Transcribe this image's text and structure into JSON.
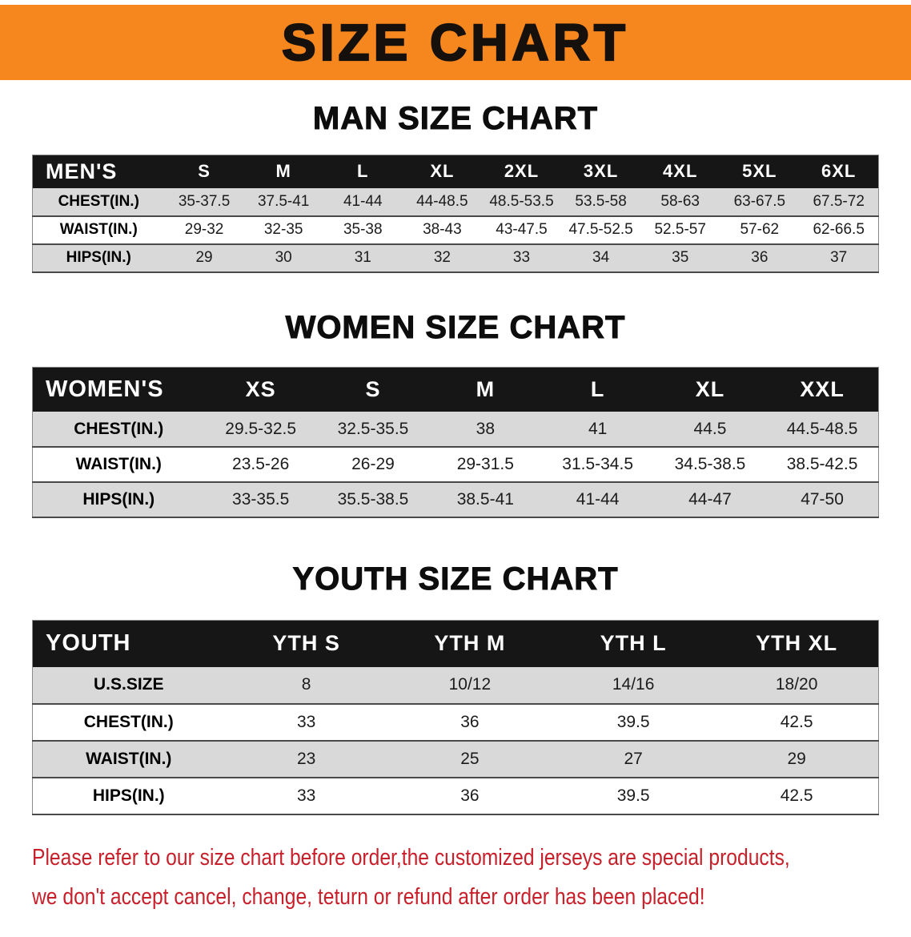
{
  "banner": {
    "title": "SIZE CHART"
  },
  "sections": [
    {
      "id": "men",
      "heading": "MAN SIZE CHART",
      "table": {
        "label": "MEN'S",
        "sizes": [
          "S",
          "M",
          "L",
          "XL",
          "2XL",
          "3XL",
          "4XL",
          "5XL",
          "6XL"
        ],
        "rows": [
          {
            "label": "CHEST(IN.)",
            "values": [
              "35-37.5",
              "37.5-41",
              "41-44",
              "44-48.5",
              "48.5-53.5",
              "53.5-58",
              "58-63",
              "63-67.5",
              "67.5-72"
            ]
          },
          {
            "label": "WAIST(IN.)",
            "values": [
              "29-32",
              "32-35",
              "35-38",
              "38-43",
              "43-47.5",
              "47.5-52.5",
              "52.5-57",
              "57-62",
              "62-66.5"
            ]
          },
          {
            "label": "HIPS(IN.)",
            "values": [
              "29",
              "30",
              "31",
              "32",
              "33",
              "34",
              "35",
              "36",
              "37"
            ]
          }
        ]
      }
    },
    {
      "id": "women",
      "heading": "WOMEN SIZE CHART",
      "table": {
        "label": "WOMEN'S",
        "sizes": [
          "XS",
          "S",
          "M",
          "L",
          "XL",
          "XXL"
        ],
        "rows": [
          {
            "label": "CHEST(IN.)",
            "values": [
              "29.5-32.5",
              "32.5-35.5",
              "38",
              "41",
              "44.5",
              "44.5-48.5"
            ]
          },
          {
            "label": "WAIST(IN.)",
            "values": [
              "23.5-26",
              "26-29",
              "29-31.5",
              "31.5-34.5",
              "34.5-38.5",
              "38.5-42.5"
            ]
          },
          {
            "label": "HIPS(IN.)",
            "values": [
              "33-35.5",
              "35.5-38.5",
              "38.5-41",
              "41-44",
              "44-47",
              "47-50"
            ]
          }
        ]
      }
    },
    {
      "id": "youth",
      "heading": "YOUTH SIZE CHART",
      "table": {
        "label": "YOUTH",
        "sizes": [
          "YTH S",
          "YTH M",
          "YTH L",
          "YTH XL"
        ],
        "rows": [
          {
            "label": "U.S.SIZE",
            "values": [
              "8",
              "10/12",
              "14/16",
              "18/20"
            ]
          },
          {
            "label": "CHEST(IN.)",
            "values": [
              "33",
              "36",
              "39.5",
              "42.5"
            ]
          },
          {
            "label": "WAIST(IN.)",
            "values": [
              "23",
              "25",
              "27",
              "29"
            ]
          },
          {
            "label": "HIPS(IN.)",
            "values": [
              "33",
              "36",
              "39.5",
              "42.5"
            ]
          }
        ]
      }
    }
  ],
  "disclaimer": {
    "line1": "Please refer to our size chart before order,the customized jerseys are special products,",
    "line2": "we don't accept cancel, change, teturn or refund after order has been placed!"
  },
  "colors": {
    "banner_bg": "#f6871f",
    "header_bg": "#161616",
    "row_shade": "#d9d9d9",
    "disclaimer_red": "#c8202a"
  }
}
